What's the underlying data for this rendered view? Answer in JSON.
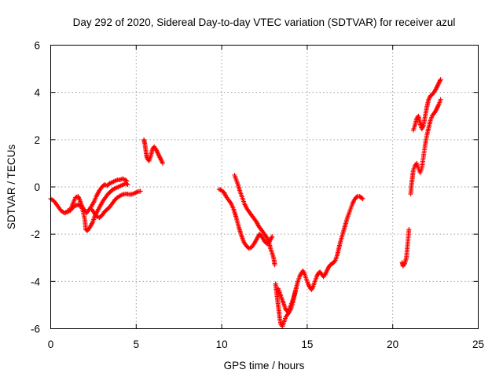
{
  "chart_data": {
    "type": "scatter",
    "title": "Day 292 of 2020, Sidereal Day-to-day VTEC variation (SDTVAR) for receiver azul",
    "xlabel": "GPS time / hours",
    "ylabel": "SDTVAR / TECUs",
    "xlim": [
      0,
      25
    ],
    "ylim": [
      -6,
      6
    ],
    "xticks": [
      0,
      5,
      10,
      15,
      20,
      25
    ],
    "yticks": [
      -6,
      -4,
      -2,
      0,
      2,
      4,
      6
    ],
    "grid": true,
    "marker": "+",
    "series": [
      {
        "name": "SDTVAR",
        "color": "#ff0000",
        "segments": [
          [
            [
              0.0,
              -0.5
            ],
            [
              0.2,
              -0.6
            ],
            [
              0.4,
              -0.8
            ],
            [
              0.6,
              -1.0
            ],
            [
              0.8,
              -1.1
            ],
            [
              1.0,
              -1.05
            ],
            [
              1.15,
              -1.0
            ],
            [
              1.3,
              -0.7
            ],
            [
              1.45,
              -0.45
            ],
            [
              1.6,
              -0.4
            ],
            [
              1.7,
              -0.55
            ],
            [
              1.85,
              -0.85
            ],
            [
              2.0,
              -1.0
            ],
            [
              2.1,
              -1.1
            ],
            [
              2.25,
              -0.95
            ],
            [
              2.4,
              -0.8
            ],
            [
              2.55,
              -0.6
            ],
            [
              2.7,
              -0.35
            ],
            [
              2.85,
              -0.15
            ],
            [
              3.0,
              0.0
            ],
            [
              3.15,
              0.1
            ],
            [
              3.3,
              0.05
            ],
            [
              3.45,
              0.15
            ],
            [
              3.6,
              0.2
            ],
            [
              3.75,
              0.25
            ],
            [
              3.9,
              0.3
            ],
            [
              4.05,
              0.3
            ],
            [
              4.2,
              0.35
            ],
            [
              4.35,
              0.3
            ],
            [
              4.45,
              0.25
            ]
          ],
          [
            [
              1.0,
              -1.0
            ],
            [
              1.2,
              -0.95
            ],
            [
              1.4,
              -0.8
            ],
            [
              1.6,
              -0.75
            ],
            [
              1.8,
              -0.85
            ],
            [
              1.9,
              -1.05
            ],
            [
              2.0,
              -1.4
            ],
            [
              2.05,
              -1.8
            ],
            [
              2.15,
              -1.85
            ],
            [
              2.3,
              -1.7
            ],
            [
              2.45,
              -1.5
            ],
            [
              2.6,
              -1.2
            ],
            [
              2.75,
              -1.0
            ],
            [
              2.9,
              -0.8
            ],
            [
              3.05,
              -0.6
            ],
            [
              3.2,
              -0.45
            ],
            [
              3.35,
              -0.3
            ],
            [
              3.5,
              -0.2
            ],
            [
              3.65,
              -0.1
            ],
            [
              3.8,
              -0.05
            ],
            [
              3.95,
              0.0
            ],
            [
              4.1,
              0.05
            ],
            [
              4.25,
              0.1
            ],
            [
              4.4,
              0.15
            ],
            [
              4.5,
              0.1
            ]
          ],
          [
            [
              2.4,
              -0.95
            ],
            [
              2.55,
              -1.1
            ],
            [
              2.7,
              -1.25
            ],
            [
              2.85,
              -1.3
            ],
            [
              3.0,
              -1.2
            ],
            [
              3.15,
              -1.05
            ],
            [
              3.3,
              -0.95
            ],
            [
              3.45,
              -0.85
            ],
            [
              3.6,
              -0.7
            ],
            [
              3.75,
              -0.55
            ],
            [
              3.9,
              -0.45
            ],
            [
              4.05,
              -0.38
            ],
            [
              4.2,
              -0.32
            ],
            [
              4.35,
              -0.3
            ],
            [
              4.5,
              -0.3
            ],
            [
              4.65,
              -0.32
            ],
            [
              4.8,
              -0.3
            ],
            [
              4.95,
              -0.25
            ],
            [
              5.1,
              -0.2
            ],
            [
              5.25,
              -0.18
            ]
          ],
          [
            [
              5.45,
              2.0
            ],
            [
              5.5,
              1.85
            ],
            [
              5.55,
              1.6
            ],
            [
              5.6,
              1.35
            ],
            [
              5.65,
              1.2
            ],
            [
              5.75,
              1.1
            ],
            [
              5.85,
              1.3
            ],
            [
              5.95,
              1.6
            ],
            [
              6.05,
              1.7
            ],
            [
              6.15,
              1.6
            ],
            [
              6.25,
              1.45
            ],
            [
              6.35,
              1.3
            ],
            [
              6.45,
              1.15
            ],
            [
              6.55,
              1.0
            ]
          ],
          [
            [
              9.85,
              -0.1
            ],
            [
              10.0,
              -0.15
            ],
            [
              10.15,
              -0.25
            ],
            [
              10.25,
              -0.4
            ],
            [
              10.4,
              -0.55
            ],
            [
              10.55,
              -0.7
            ],
            [
              10.7,
              -0.95
            ],
            [
              10.85,
              -1.3
            ],
            [
              11.0,
              -1.7
            ],
            [
              11.15,
              -2.05
            ],
            [
              11.3,
              -2.35
            ],
            [
              11.45,
              -2.5
            ],
            [
              11.6,
              -2.6
            ],
            [
              11.75,
              -2.55
            ],
            [
              11.9,
              -2.4
            ],
            [
              12.05,
              -2.2
            ],
            [
              12.2,
              -2.0
            ],
            [
              12.35,
              -2.1
            ],
            [
              12.5,
              -2.3
            ],
            [
              12.65,
              -2.4
            ],
            [
              12.8,
              -2.3
            ],
            [
              12.95,
              -2.1
            ]
          ],
          [
            [
              10.75,
              0.5
            ],
            [
              10.85,
              0.3
            ],
            [
              10.95,
              0.1
            ],
            [
              11.05,
              -0.15
            ],
            [
              11.15,
              -0.35
            ],
            [
              11.25,
              -0.55
            ],
            [
              11.35,
              -0.75
            ],
            [
              11.5,
              -0.95
            ],
            [
              11.6,
              -1.05
            ],
            [
              11.75,
              -1.2
            ],
            [
              11.9,
              -1.35
            ],
            [
              12.05,
              -1.5
            ],
            [
              12.15,
              -1.65
            ],
            [
              12.3,
              -1.8
            ],
            [
              12.45,
              -1.95
            ],
            [
              12.6,
              -2.1
            ],
            [
              12.75,
              -2.3
            ],
            [
              12.85,
              -2.6
            ],
            [
              12.95,
              -2.8
            ],
            [
              13.05,
              -3.05
            ],
            [
              13.1,
              -3.3
            ]
          ],
          [
            [
              13.15,
              -4.1
            ],
            [
              13.2,
              -4.4
            ],
            [
              13.25,
              -4.7
            ],
            [
              13.3,
              -5.0
            ],
            [
              13.35,
              -5.3
            ],
            [
              13.4,
              -5.6
            ],
            [
              13.45,
              -5.8
            ],
            [
              13.55,
              -5.9
            ],
            [
              13.65,
              -5.7
            ],
            [
              13.75,
              -5.5
            ],
            [
              13.85,
              -5.4
            ],
            [
              13.95,
              -5.3
            ],
            [
              14.05,
              -5.15
            ],
            [
              14.15,
              -4.9
            ],
            [
              14.25,
              -4.6
            ],
            [
              14.35,
              -4.3
            ],
            [
              14.45,
              -4.0
            ],
            [
              14.55,
              -3.8
            ],
            [
              14.65,
              -3.65
            ],
            [
              14.75,
              -3.55
            ],
            [
              14.85,
              -3.7
            ],
            [
              14.95,
              -3.9
            ],
            [
              15.05,
              -4.1
            ],
            [
              15.15,
              -4.25
            ],
            [
              15.25,
              -4.35
            ],
            [
              15.35,
              -4.2
            ],
            [
              15.45,
              -4.0
            ],
            [
              15.55,
              -3.8
            ],
            [
              15.65,
              -3.65
            ],
            [
              15.75,
              -3.6
            ],
            [
              15.85,
              -3.7
            ],
            [
              15.95,
              -3.8
            ],
            [
              16.05,
              -3.7
            ],
            [
              16.15,
              -3.55
            ],
            [
              16.25,
              -3.4
            ],
            [
              16.35,
              -3.3
            ],
            [
              16.45,
              -3.25
            ],
            [
              16.55,
              -3.2
            ],
            [
              16.65,
              -3.1
            ],
            [
              16.75,
              -2.9
            ],
            [
              16.85,
              -2.6
            ],
            [
              16.95,
              -2.3
            ],
            [
              17.05,
              -2.05
            ],
            [
              17.15,
              -1.8
            ],
            [
              17.25,
              -1.55
            ],
            [
              17.35,
              -1.3
            ],
            [
              17.45,
              -1.1
            ],
            [
              17.55,
              -0.9
            ],
            [
              17.65,
              -0.7
            ],
            [
              17.75,
              -0.55
            ],
            [
              17.85,
              -0.45
            ],
            [
              17.95,
              -0.4
            ],
            [
              18.05,
              -0.4
            ],
            [
              18.15,
              -0.45
            ],
            [
              18.25,
              -0.5
            ]
          ],
          [
            [
              13.3,
              -4.3
            ],
            [
              13.45,
              -4.6
            ],
            [
              13.6,
              -4.9
            ],
            [
              13.75,
              -5.2
            ],
            [
              13.9,
              -5.3
            ],
            [
              14.05,
              -5.0
            ],
            [
              14.2,
              -4.7
            ],
            [
              14.35,
              -4.3
            ]
          ],
          [
            [
              20.55,
              -3.2
            ],
            [
              20.6,
              -3.35
            ],
            [
              20.7,
              -3.25
            ],
            [
              20.8,
              -3.0
            ],
            [
              20.85,
              -2.6
            ],
            [
              20.9,
              -2.2
            ],
            [
              20.95,
              -1.8
            ]
          ],
          [
            [
              21.05,
              -0.3
            ],
            [
              21.1,
              0.1
            ],
            [
              21.15,
              0.4
            ],
            [
              21.2,
              0.7
            ],
            [
              21.3,
              0.9
            ],
            [
              21.4,
              1.0
            ],
            [
              21.5,
              0.8
            ],
            [
              21.6,
              0.6
            ],
            [
              21.7,
              0.8
            ],
            [
              21.8,
              1.3
            ],
            [
              21.9,
              1.8
            ],
            [
              22.0,
              2.2
            ],
            [
              22.1,
              2.5
            ],
            [
              22.2,
              2.8
            ],
            [
              22.3,
              3.0
            ],
            [
              22.4,
              3.1
            ],
            [
              22.5,
              3.2
            ],
            [
              22.6,
              3.35
            ],
            [
              22.7,
              3.5
            ],
            [
              22.8,
              3.7
            ]
          ],
          [
            [
              21.2,
              2.4
            ],
            [
              21.3,
              2.6
            ],
            [
              21.4,
              2.9
            ],
            [
              21.5,
              3.0
            ],
            [
              21.6,
              2.7
            ],
            [
              21.7,
              2.45
            ],
            [
              21.8,
              2.6
            ],
            [
              21.9,
              3.0
            ],
            [
              22.0,
              3.4
            ],
            [
              22.1,
              3.7
            ],
            [
              22.2,
              3.85
            ],
            [
              22.3,
              3.9
            ],
            [
              22.4,
              4.0
            ],
            [
              22.5,
              4.1
            ],
            [
              22.6,
              4.25
            ],
            [
              22.7,
              4.4
            ],
            [
              22.8,
              4.55
            ]
          ]
        ]
      }
    ]
  }
}
